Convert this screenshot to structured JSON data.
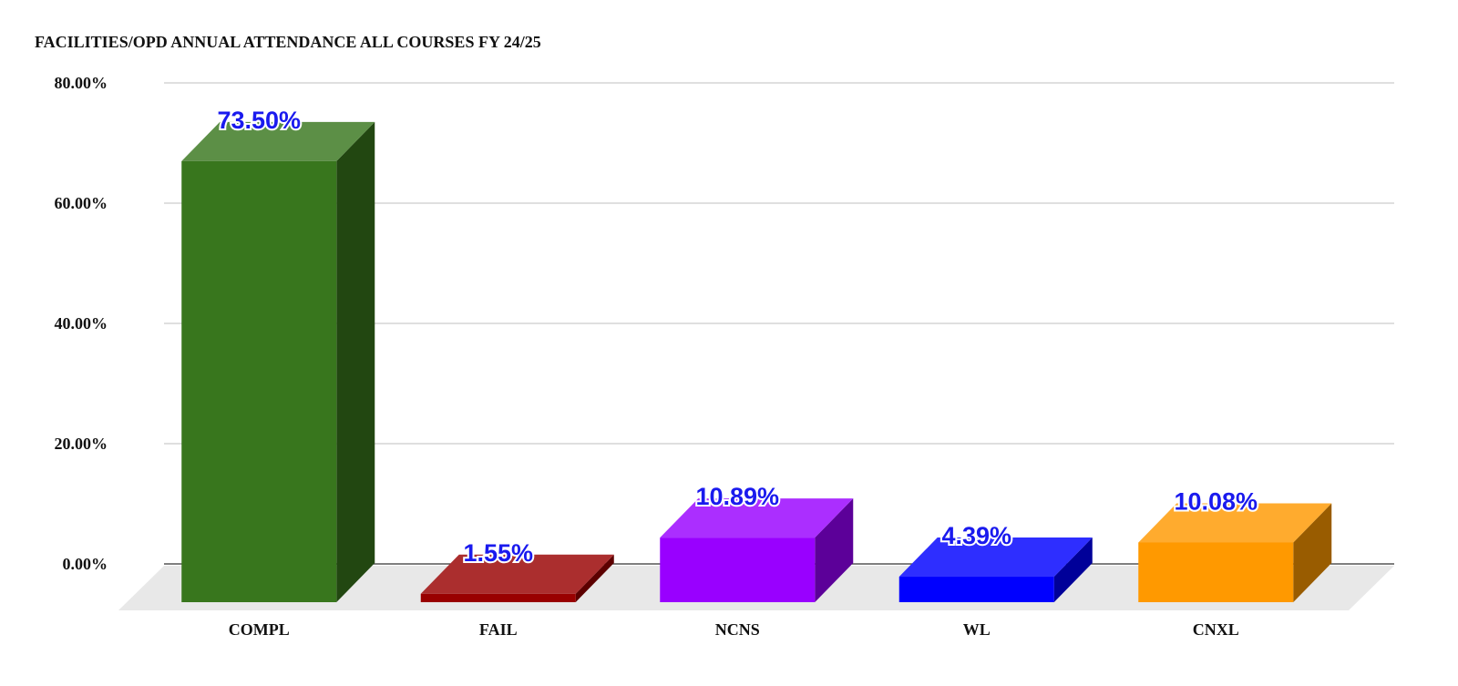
{
  "chart_data": {
    "type": "bar3d",
    "title": "FACILITIES/OPD ANNUAL ATTENDANCE ALL COURSES FY 24/25",
    "categories": [
      "COMPL",
      "FAIL",
      "NCNS",
      "WL",
      "CNXL"
    ],
    "values": [
      73.5,
      1.55,
      10.89,
      4.39,
      10.08
    ],
    "value_labels": [
      "73.50%",
      "1.55%",
      "10.89%",
      "4.39%",
      "10.08%"
    ],
    "colors": [
      "#38761d",
      "#990000",
      "#9900ff",
      "#0000ff",
      "#ff9900"
    ],
    "ylim": [
      0,
      80
    ],
    "yticks": [
      {
        "value": 0,
        "label": "0.00%"
      },
      {
        "value": 20,
        "label": "20.00%"
      },
      {
        "value": 40,
        "label": "40.00%"
      },
      {
        "value": 60,
        "label": "60.00%"
      },
      {
        "value": 80,
        "label": "80.00%"
      }
    ],
    "grid": true
  }
}
